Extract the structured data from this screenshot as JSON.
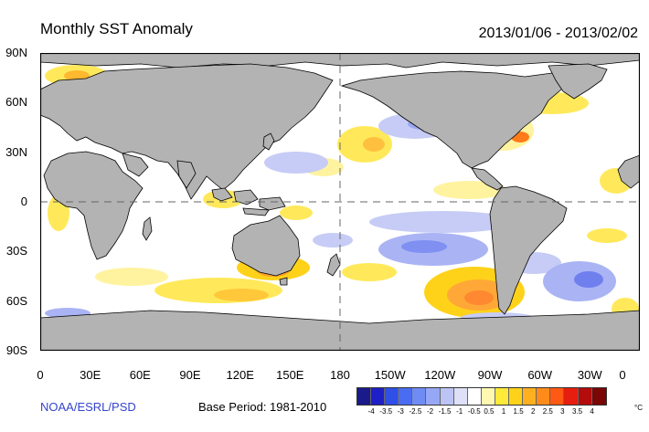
{
  "title": "Monthly SST Anomaly",
  "date_range": "2013/01/06 - 2013/02/02",
  "credit": "NOAA/ESRL/PSD",
  "base_period": "Base Period: 1981-2010",
  "lat_labels": [
    "90N",
    "60N",
    "30N",
    "0",
    "30S",
    "60S",
    "90S"
  ],
  "lon_labels": [
    "0",
    "30E",
    "60E",
    "90E",
    "120E",
    "150E",
    "180",
    "150W",
    "120W",
    "90W",
    "60W",
    "30W",
    "0"
  ],
  "legend": {
    "unit": "°C",
    "labels": [
      "-4",
      "-3.5",
      "-3",
      "-2.5",
      "-2",
      "-1.5",
      "-1",
      "-0.5",
      "0.5",
      "1",
      "1.5",
      "2",
      "2.5",
      "3",
      "3.5",
      "4"
    ],
    "colors": [
      "#1a1a8a",
      "#1f1fc8",
      "#2f4fe6",
      "#4a6cf2",
      "#6f8cf5",
      "#96a8f5",
      "#bcc4f5",
      "#dde0f7",
      "#ffffff",
      "#fff8b0",
      "#ffea3a",
      "#ffd21a",
      "#ffb020",
      "#ff8c1a",
      "#ff5a14",
      "#e61e0f",
      "#b40c0c",
      "#7a0606"
    ]
  },
  "colors": {
    "land": "#b3b3b3",
    "coast": "#000000",
    "ocean": "#ffffff",
    "credit": "#3344cc"
  }
}
